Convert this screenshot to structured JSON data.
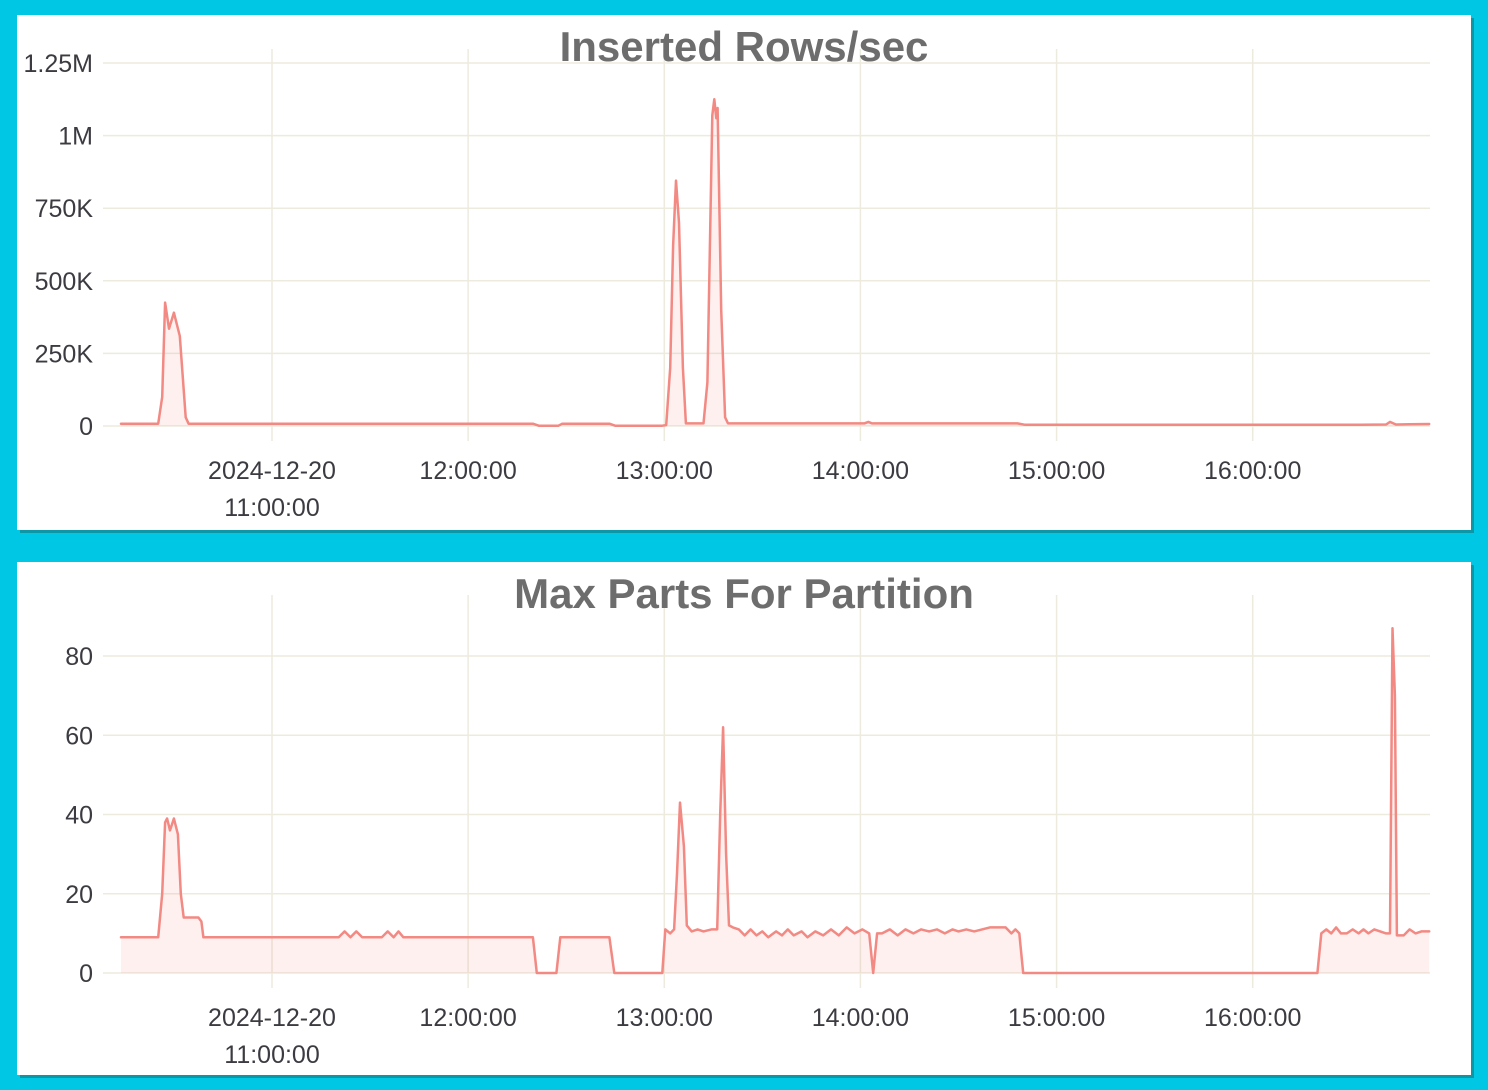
{
  "style": {
    "frame_color": "#00C7E4",
    "panel_color": "#FFFFFF",
    "panel_edge_color": "#0D96A6",
    "grid_color": "#EDEBDE",
    "line_color": "#F28983",
    "fill_color": "rgba(242,137,131,0.13)",
    "title_color": "#6D6D6D",
    "tick_color": "#3B3B41"
  },
  "chart_data": [
    {
      "type": "area",
      "title": "Inserted Rows/sec",
      "xlabel": "",
      "ylabel": "",
      "grid": true,
      "legend": "none",
      "x_unit": "time of day on 2024-12-20 (decimal hours)",
      "xlim": [
        10.14,
        16.91
      ],
      "ylim": [
        0,
        1300000
      ],
      "x_ticks": [
        {
          "value": 11,
          "lines": [
            "2024-12-20",
            "11:00:00"
          ]
        },
        {
          "value": 12,
          "lines": [
            "12:00:00"
          ]
        },
        {
          "value": 13,
          "lines": [
            "13:00:00"
          ]
        },
        {
          "value": 14,
          "lines": [
            "14:00:00"
          ]
        },
        {
          "value": 15,
          "lines": [
            "15:00:00"
          ]
        },
        {
          "value": 16,
          "lines": [
            "16:00:00"
          ]
        }
      ],
      "y_ticks": [
        {
          "value": 0,
          "label": "0"
        },
        {
          "value": 250000,
          "label": "250K"
        },
        {
          "value": 500000,
          "label": "500K"
        },
        {
          "value": 750000,
          "label": "750K"
        },
        {
          "value": 1000000,
          "label": "1M"
        },
        {
          "value": 1250000,
          "label": "1.25M"
        }
      ],
      "series": [
        {
          "name": "Inserted Rows/sec",
          "points": [
            [
              10.23,
              8000
            ],
            [
              10.42,
              8000
            ],
            [
              10.44,
              100000
            ],
            [
              10.455,
              425000
            ],
            [
              10.475,
              335000
            ],
            [
              10.5,
              390000
            ],
            [
              10.53,
              310000
            ],
            [
              10.56,
              30000
            ],
            [
              10.575,
              8000
            ],
            [
              11.5,
              8000
            ],
            [
              12.33,
              8000
            ],
            [
              12.36,
              1000
            ],
            [
              12.46,
              1000
            ],
            [
              12.48,
              8000
            ],
            [
              12.72,
              8000
            ],
            [
              12.75,
              1000
            ],
            [
              12.99,
              1000
            ],
            [
              13.01,
              3000
            ],
            [
              13.03,
              200000
            ],
            [
              13.045,
              620000
            ],
            [
              13.06,
              845000
            ],
            [
              13.075,
              700000
            ],
            [
              13.095,
              200000
            ],
            [
              13.11,
              9000
            ],
            [
              13.16,
              9000
            ],
            [
              13.2,
              9000
            ],
            [
              13.22,
              150000
            ],
            [
              13.245,
              1070000
            ],
            [
              13.255,
              1125000
            ],
            [
              13.265,
              1060000
            ],
            [
              13.272,
              1095000
            ],
            [
              13.29,
              400000
            ],
            [
              13.31,
              30000
            ],
            [
              13.325,
              9000
            ],
            [
              13.5,
              9000
            ],
            [
              14.02,
              9000
            ],
            [
              14.04,
              14000
            ],
            [
              14.06,
              9000
            ],
            [
              14.5,
              9000
            ],
            [
              14.8,
              9000
            ],
            [
              14.84,
              4000
            ],
            [
              15.5,
              4000
            ],
            [
              16.3,
              4000
            ],
            [
              16.55,
              4000
            ],
            [
              16.68,
              5000
            ],
            [
              16.7,
              14000
            ],
            [
              16.73,
              5000
            ],
            [
              16.8,
              6000
            ],
            [
              16.9,
              7000
            ]
          ]
        }
      ]
    },
    {
      "type": "area",
      "title": "Max Parts For Partition",
      "xlabel": "",
      "ylabel": "",
      "grid": true,
      "legend": "none",
      "x_unit": "time of day on 2024-12-20 (decimal hours)",
      "xlim": [
        10.14,
        16.91
      ],
      "ylim": [
        0,
        100
      ],
      "x_ticks": [
        {
          "value": 11,
          "lines": [
            "2024-12-20",
            "11:00:00"
          ]
        },
        {
          "value": 12,
          "lines": [
            "12:00:00"
          ]
        },
        {
          "value": 13,
          "lines": [
            "13:00:00"
          ]
        },
        {
          "value": 14,
          "lines": [
            "14:00:00"
          ]
        },
        {
          "value": 15,
          "lines": [
            "15:00:00"
          ]
        },
        {
          "value": 16,
          "lines": [
            "16:00:00"
          ]
        }
      ],
      "y_ticks": [
        {
          "value": 0,
          "label": "0"
        },
        {
          "value": 20,
          "label": "20"
        },
        {
          "value": 40,
          "label": "40"
        },
        {
          "value": 60,
          "label": "60"
        },
        {
          "value": 80,
          "label": "80"
        }
      ],
      "series": [
        {
          "name": "Max Parts For Partition",
          "points": [
            [
              10.23,
              9
            ],
            [
              10.42,
              9
            ],
            [
              10.44,
              20
            ],
            [
              10.455,
              38
            ],
            [
              10.465,
              39
            ],
            [
              10.48,
              36
            ],
            [
              10.5,
              39
            ],
            [
              10.52,
              35
            ],
            [
              10.535,
              20
            ],
            [
              10.55,
              14
            ],
            [
              10.625,
              14
            ],
            [
              10.64,
              13
            ],
            [
              10.65,
              9
            ],
            [
              11.34,
              9
            ],
            [
              11.37,
              10.5
            ],
            [
              11.4,
              9
            ],
            [
              11.43,
              10.5
            ],
            [
              11.46,
              9
            ],
            [
              11.56,
              9
            ],
            [
              11.59,
              10.5
            ],
            [
              11.62,
              9
            ],
            [
              11.645,
              10.5
            ],
            [
              11.67,
              9
            ],
            [
              12.33,
              9
            ],
            [
              12.35,
              0
            ],
            [
              12.45,
              0
            ],
            [
              12.47,
              9
            ],
            [
              12.72,
              9
            ],
            [
              12.745,
              0
            ],
            [
              12.99,
              0
            ],
            [
              13.005,
              11
            ],
            [
              13.03,
              10
            ],
            [
              13.05,
              11
            ],
            [
              13.065,
              25
            ],
            [
              13.08,
              43
            ],
            [
              13.1,
              32
            ],
            [
              13.115,
              12
            ],
            [
              13.14,
              10.5
            ],
            [
              13.17,
              11
            ],
            [
              13.2,
              10.5
            ],
            [
              13.24,
              11
            ],
            [
              13.27,
              11
            ],
            [
              13.285,
              40
            ],
            [
              13.3,
              62
            ],
            [
              13.315,
              30
            ],
            [
              13.33,
              12
            ],
            [
              13.35,
              11.5
            ],
            [
              13.38,
              11
            ],
            [
              13.41,
              9.5
            ],
            [
              13.44,
              11
            ],
            [
              13.47,
              9.5
            ],
            [
              13.5,
              10.5
            ],
            [
              13.53,
              9
            ],
            [
              13.57,
              10.5
            ],
            [
              13.6,
              9.5
            ],
            [
              13.63,
              11
            ],
            [
              13.66,
              9.5
            ],
            [
              13.7,
              10.5
            ],
            [
              13.73,
              9
            ],
            [
              13.77,
              10.5
            ],
            [
              13.81,
              9.5
            ],
            [
              13.85,
              11
            ],
            [
              13.89,
              9.5
            ],
            [
              13.93,
              11.5
            ],
            [
              13.97,
              10
            ],
            [
              14.01,
              11
            ],
            [
              14.045,
              10
            ],
            [
              14.065,
              0
            ],
            [
              14.085,
              10
            ],
            [
              14.11,
              10
            ],
            [
              14.15,
              11
            ],
            [
              14.19,
              9.5
            ],
            [
              14.23,
              11
            ],
            [
              14.27,
              10
            ],
            [
              14.31,
              11
            ],
            [
              14.35,
              10.5
            ],
            [
              14.39,
              11
            ],
            [
              14.43,
              10
            ],
            [
              14.47,
              11
            ],
            [
              14.5,
              10.5
            ],
            [
              14.54,
              11
            ],
            [
              14.58,
              10.5
            ],
            [
              14.62,
              11
            ],
            [
              14.66,
              11.5
            ],
            [
              14.74,
              11.5
            ],
            [
              14.77,
              10
            ],
            [
              14.79,
              11
            ],
            [
              14.81,
              10
            ],
            [
              14.83,
              0
            ],
            [
              16.33,
              0
            ],
            [
              16.35,
              10
            ],
            [
              16.375,
              11
            ],
            [
              16.4,
              10
            ],
            [
              16.425,
              11.5
            ],
            [
              16.45,
              10
            ],
            [
              16.48,
              10
            ],
            [
              16.51,
              11
            ],
            [
              16.54,
              10
            ],
            [
              16.565,
              11
            ],
            [
              16.59,
              10
            ],
            [
              16.62,
              11
            ],
            [
              16.65,
              10.5
            ],
            [
              16.68,
              10
            ],
            [
              16.7,
              10
            ],
            [
              16.713,
              87
            ],
            [
              16.725,
              70
            ],
            [
              16.735,
              9.5
            ],
            [
              16.77,
              9.5
            ],
            [
              16.8,
              11
            ],
            [
              16.83,
              10
            ],
            [
              16.86,
              10.5
            ],
            [
              16.9,
              10.5
            ]
          ]
        }
      ]
    }
  ]
}
